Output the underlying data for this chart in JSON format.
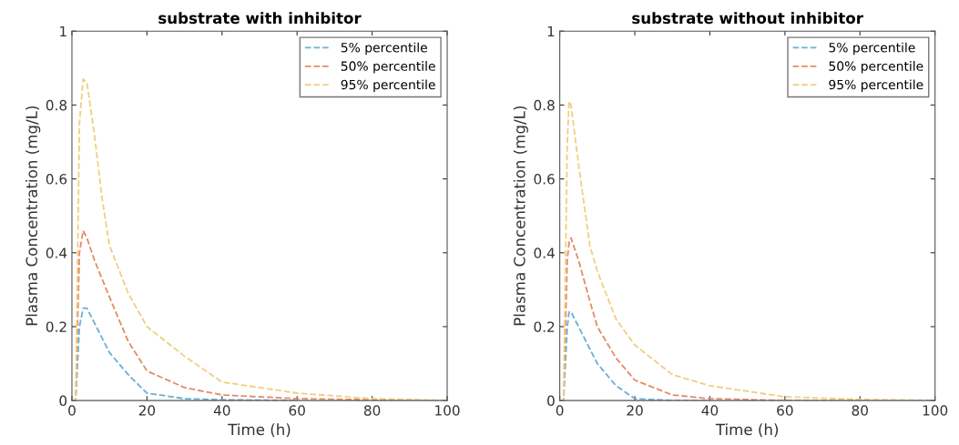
{
  "chart_data": [
    {
      "type": "line",
      "title": "substrate with inhibitor",
      "xlabel": "Time (h)",
      "ylabel": "Plasma Concentration (mg/L)",
      "xlim": [
        0,
        100
      ],
      "ylim": [
        0,
        1
      ],
      "xticks": [
        0,
        20,
        40,
        60,
        80,
        100
      ],
      "yticks": [
        0,
        0.2,
        0.4,
        0.6,
        0.8,
        1
      ],
      "legend": "top right",
      "grid": false,
      "line_style": "dashed",
      "marker": "none",
      "x": [
        0,
        1,
        2,
        3,
        4,
        6,
        8,
        10,
        15,
        20,
        30,
        40,
        60,
        80,
        100
      ],
      "series": [
        {
          "name": "5% percentile",
          "color": "#6aaed6",
          "values": [
            0,
            0,
            0.2,
            0.25,
            0.25,
            0.21,
            0.17,
            0.13,
            0.07,
            0.02,
            0.005,
            0.002,
            0,
            null,
            null
          ]
        },
        {
          "name": "50% percentile",
          "color": "#e58a66",
          "values": [
            0,
            0,
            0.4,
            0.46,
            0.44,
            0.38,
            0.33,
            0.28,
            0.16,
            0.08,
            0.035,
            0.015,
            0.005,
            0.002,
            0
          ]
        },
        {
          "name": "95% percentile",
          "color": "#f0cf7e",
          "values": [
            0,
            0,
            0.75,
            0.87,
            0.86,
            0.72,
            0.55,
            0.42,
            0.29,
            0.2,
            0.12,
            0.05,
            0.02,
            0.005,
            0
          ]
        }
      ]
    },
    {
      "type": "line",
      "title": "substrate without inhibitor",
      "xlabel": "Time (h)",
      "ylabel": "Plasma Concentration (mg/L)",
      "xlim": [
        0,
        100
      ],
      "ylim": [
        0,
        1
      ],
      "xticks": [
        0,
        20,
        40,
        60,
        80,
        100
      ],
      "yticks": [
        0,
        0.2,
        0.4,
        0.6,
        0.8,
        1
      ],
      "legend": "top right",
      "grid": false,
      "line_style": "dashed",
      "marker": "none",
      "x": [
        0,
        1,
        2,
        2.5,
        3,
        5,
        8,
        10,
        15,
        20,
        30,
        40,
        60,
        80,
        100
      ],
      "series": [
        {
          "name": "5% percentile",
          "color": "#6aaed6",
          "values": [
            0,
            0,
            0.2,
            0.24,
            0.24,
            0.2,
            0.14,
            0.1,
            0.04,
            0.005,
            0,
            0,
            null,
            null,
            null
          ]
        },
        {
          "name": "50% percentile",
          "color": "#e58a66",
          "values": [
            0,
            0,
            0.38,
            0.43,
            0.44,
            0.38,
            0.27,
            0.2,
            0.115,
            0.055,
            0.015,
            0.005,
            0,
            0,
            0
          ]
        },
        {
          "name": "95% percentile",
          "color": "#f0cf7e",
          "values": [
            0,
            0,
            0.7,
            0.81,
            0.8,
            0.64,
            0.42,
            0.35,
            0.22,
            0.15,
            0.07,
            0.04,
            0.01,
            0.003,
            0
          ]
        }
      ]
    }
  ]
}
